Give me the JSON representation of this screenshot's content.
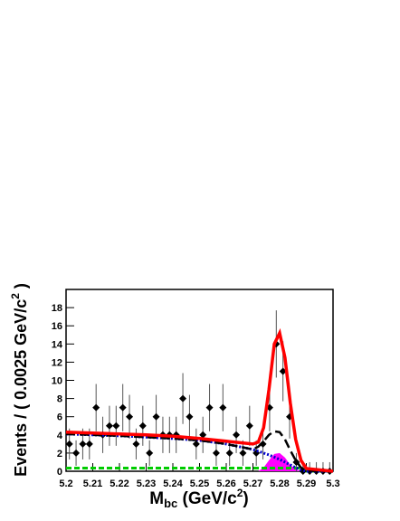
{
  "chart_data": {
    "type": "fit",
    "xlabel_parts": [
      "M",
      "bc",
      " (GeV/c",
      "2",
      ")"
    ],
    "ylabel_parts": [
      "Events / ( 0.0025 GeV/c",
      "2",
      " )"
    ],
    "xlim": [
      5.2,
      5.3
    ],
    "ylim": [
      0,
      20
    ],
    "xticks": [
      5.2,
      5.21,
      5.22,
      5.23,
      5.24,
      5.25,
      5.26,
      5.27,
      5.28,
      5.29,
      5.3
    ],
    "yticks": [
      0,
      2,
      4,
      6,
      8,
      10,
      12,
      14,
      16,
      18
    ],
    "data": {
      "color": "#000000",
      "x": [
        5.20125,
        5.20375,
        5.20625,
        5.20875,
        5.21125,
        5.21375,
        5.21625,
        5.21875,
        5.22125,
        5.22375,
        5.22625,
        5.22875,
        5.23125,
        5.23375,
        5.23625,
        5.23875,
        5.24125,
        5.24375,
        5.24625,
        5.24875,
        5.25125,
        5.25375,
        5.25625,
        5.25875,
        5.26125,
        5.26375,
        5.26625,
        5.26875,
        5.27125,
        5.27375,
        5.27625,
        5.27875,
        5.28125,
        5.28375,
        5.28625,
        5.28875,
        5.29125,
        5.29375,
        5.29625,
        5.29875
      ],
      "values": [
        3,
        2,
        3,
        3,
        7,
        4,
        5,
        5,
        7,
        6,
        3,
        5,
        2,
        6,
        4,
        4,
        4,
        8,
        6,
        3,
        4,
        7,
        2,
        7,
        2,
        4,
        2,
        5,
        2,
        3,
        7,
        14,
        11,
        6,
        1,
        0,
        0,
        0,
        0,
        0
      ],
      "errors": [
        1.7,
        1.4,
        1.7,
        1.7,
        2.6,
        2,
        2.2,
        2.2,
        2.6,
        2.4,
        1.7,
        2.2,
        1.4,
        2.4,
        2,
        2,
        2,
        2.8,
        2.4,
        1.7,
        2,
        2.6,
        1.4,
        2.6,
        1.4,
        2,
        1.4,
        2.2,
        1.4,
        1.7,
        2.6,
        3.7,
        3.3,
        2.4,
        1,
        1,
        1,
        1,
        1,
        1
      ]
    },
    "curves": [
      {
        "style": "fill",
        "color": "#ff00ff",
        "x": [
          5.2,
          5.27,
          5.272,
          5.274,
          5.276,
          5.278,
          5.28,
          5.282,
          5.284,
          5.286,
          5.288,
          5.3
        ],
        "values": [
          0,
          0,
          0,
          0.4,
          1.2,
          1.9,
          2,
          1.5,
          0.7,
          0.2,
          0,
          0
        ]
      },
      {
        "style": "dashed-thin",
        "color": "#00cc00",
        "x": [
          5.2,
          5.288,
          5.29,
          5.3
        ],
        "values": [
          0.35,
          0.35,
          0,
          0
        ]
      },
      {
        "style": "dotted",
        "color": "#0000cc",
        "x": [
          5.2,
          5.21,
          5.22,
          5.23,
          5.24,
          5.25,
          5.26,
          5.27,
          5.272,
          5.274,
          5.276,
          5.278,
          5.28,
          5.282,
          5.284,
          5.286,
          5.288,
          5.29,
          5.3
        ],
        "values": [
          4.1,
          4,
          3.9,
          3.75,
          3.6,
          3.4,
          3,
          2.4,
          2.2,
          2,
          1.8,
          1.55,
          1.3,
          1,
          0.7,
          0.4,
          0.15,
          0,
          0
        ]
      },
      {
        "style": "dashed",
        "color": "#000000",
        "x": [
          5.2,
          5.21,
          5.22,
          5.23,
          5.24,
          5.25,
          5.26,
          5.27,
          5.272,
          5.274,
          5.276,
          5.278,
          5.28,
          5.282,
          5.284,
          5.286,
          5.288,
          5.29,
          5.3
        ],
        "values": [
          4.1,
          4,
          3.9,
          3.75,
          3.6,
          3.4,
          3,
          2.4,
          2.7,
          3.3,
          4,
          4.4,
          4.3,
          3.5,
          2.3,
          1.2,
          0.4,
          0.05,
          0
        ]
      },
      {
        "style": "solid",
        "color": "#ff0000",
        "x": [
          5.2,
          5.21,
          5.22,
          5.23,
          5.24,
          5.25,
          5.26,
          5.27,
          5.272,
          5.274,
          5.276,
          5.278,
          5.28,
          5.282,
          5.284,
          5.286,
          5.288,
          5.29,
          5.3
        ],
        "values": [
          4.3,
          4.2,
          4.1,
          4,
          3.85,
          3.6,
          3.3,
          3,
          3.2,
          4.8,
          9,
          14,
          15.2,
          12.5,
          7.5,
          3.5,
          1.2,
          0.3,
          0
        ]
      }
    ]
  }
}
